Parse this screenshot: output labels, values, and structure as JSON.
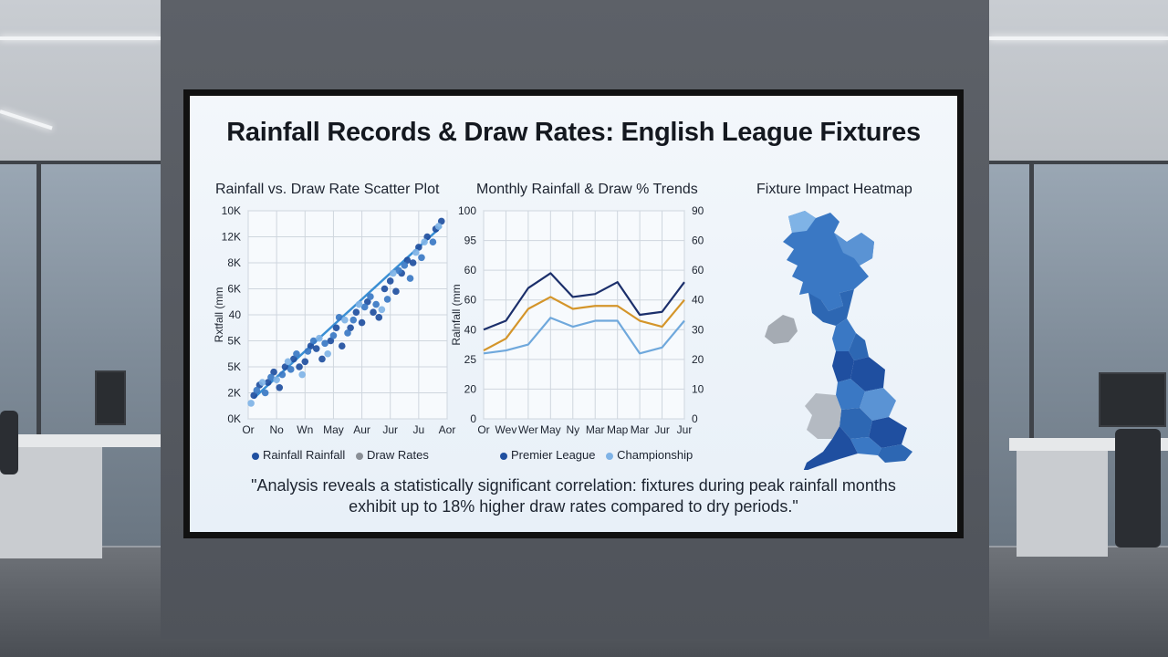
{
  "title": "Rainfall Records & Draw Rates: English League Fixtures",
  "caption_line1": "\"Analysis reveals a statistically significant correlation: fixtures during peak rainfall months",
  "caption_line2": "exhibit up to 18% higher draw rates compared to dry periods.\"",
  "colors": {
    "dark_blue": "#1f4fa0",
    "mid_blue": "#3a78c4",
    "light_blue": "#7fb3e6",
    "navy": "#1b2f6b",
    "gold": "#d4952a",
    "sky": "#6fa8dc",
    "ni_grey": "#a5abb3",
    "wales_grey": "#b4bac2"
  },
  "chart_data": [
    {
      "type": "scatter",
      "title": "Rainfall vs. Draw Rate Scatter Plot",
      "ylabel": "Rxtfall (mm",
      "y_ticks": [
        "0K",
        "2K",
        "5K",
        "5K",
        "40",
        "6K",
        "8K",
        "12K",
        "10K"
      ],
      "x_ticks": [
        "Or",
        "No",
        "Wn",
        "May",
        "Aur",
        "Jur",
        "Ju",
        "Aor"
      ],
      "legend": [
        "Rainfall Rainfall",
        "Draw Rates"
      ],
      "grid": true,
      "xlim": [
        0,
        7
      ],
      "ylim": [
        0,
        8
      ],
      "series": [
        {
          "name": "Rainfall Rainfall",
          "color": "dark",
          "values": [
            [
              0.2,
              0.9
            ],
            [
              0.4,
              1.3
            ],
            [
              0.7,
              1.4
            ],
            [
              0.9,
              1.8
            ],
            [
              1.1,
              1.2
            ],
            [
              1.3,
              2.0
            ],
            [
              1.6,
              2.3
            ],
            [
              1.8,
              2.0
            ],
            [
              2.0,
              2.2
            ],
            [
              2.2,
              2.8
            ],
            [
              2.4,
              2.7
            ],
            [
              2.6,
              2.3
            ],
            [
              2.9,
              3.0
            ],
            [
              3.1,
              3.5
            ],
            [
              3.3,
              2.8
            ],
            [
              3.6,
              3.5
            ],
            [
              3.8,
              4.1
            ],
            [
              4.0,
              3.7
            ],
            [
              4.2,
              4.5
            ],
            [
              4.4,
              4.1
            ],
            [
              4.6,
              3.9
            ],
            [
              4.8,
              5.0
            ],
            [
              5.0,
              5.3
            ],
            [
              5.2,
              4.9
            ],
            [
              5.4,
              5.6
            ],
            [
              5.6,
              6.1
            ],
            [
              5.8,
              6.0
            ],
            [
              6.0,
              6.6
            ],
            [
              6.3,
              7.0
            ],
            [
              6.6,
              7.3
            ],
            [
              6.8,
              7.6
            ]
          ]
        },
        {
          "name": "Draw Rates",
          "color": "mid",
          "values": [
            [
              0.3,
              1.1
            ],
            [
              0.6,
              1.0
            ],
            [
              0.8,
              1.6
            ],
            [
              1.2,
              1.7
            ],
            [
              1.5,
              1.9
            ],
            [
              1.7,
              2.5
            ],
            [
              2.1,
              2.6
            ],
            [
              2.3,
              3.0
            ],
            [
              2.7,
              2.9
            ],
            [
              3.0,
              3.2
            ],
            [
              3.2,
              3.9
            ],
            [
              3.5,
              3.3
            ],
            [
              3.7,
              3.8
            ],
            [
              4.1,
              4.3
            ],
            [
              4.3,
              4.7
            ],
            [
              4.5,
              4.4
            ],
            [
              4.9,
              4.6
            ],
            [
              5.3,
              5.7
            ],
            [
              5.5,
              5.9
            ],
            [
              5.7,
              5.4
            ],
            [
              6.1,
              6.2
            ],
            [
              6.5,
              6.8
            ]
          ]
        },
        {
          "name": "",
          "color": "light",
          "values": [
            [
              0.1,
              0.6
            ],
            [
              0.5,
              1.4
            ],
            [
              1.0,
              1.5
            ],
            [
              1.4,
              2.2
            ],
            [
              1.9,
              1.7
            ],
            [
              2.5,
              3.1
            ],
            [
              2.8,
              2.5
            ],
            [
              3.4,
              3.8
            ],
            [
              3.9,
              4.4
            ],
            [
              4.7,
              4.2
            ],
            [
              5.1,
              5.6
            ],
            [
              5.9,
              6.4
            ],
            [
              6.2,
              6.8
            ],
            [
              6.7,
              7.4
            ]
          ]
        }
      ],
      "trend": [
        [
          0.2,
          0.8
        ],
        [
          6.8,
          7.4
        ]
      ]
    },
    {
      "type": "line",
      "title": "Monthly Rainfall & Draw % Trends",
      "ylabel": "Ralnfall (mm",
      "y_ticks_left": [
        "0",
        "20",
        "25",
        "40",
        "60",
        "60",
        "95",
        "100"
      ],
      "y_ticks_right": [
        "0",
        "10",
        "20",
        "30",
        "40",
        "60",
        "60",
        "90"
      ],
      "x_ticks": [
        "Or",
        "Wev",
        "Wer",
        "May",
        "Ny",
        "Mar",
        "Map",
        "Mar",
        "Jur",
        "Jur"
      ],
      "legend": [
        "Premier League",
        "Championship"
      ],
      "grid": true,
      "series": [
        {
          "name": "Premier League",
          "color": "navy",
          "values": [
            3.0,
            3.3,
            4.4,
            4.9,
            4.1,
            4.2,
            4.6,
            3.5,
            3.6,
            4.6
          ]
        },
        {
          "name": "",
          "color": "gold",
          "values": [
            2.3,
            2.7,
            3.7,
            4.1,
            3.7,
            3.8,
            3.8,
            3.3,
            3.1,
            4.0
          ]
        },
        {
          "name": "Championship",
          "color": "sky",
          "values": [
            2.2,
            2.3,
            2.5,
            3.4,
            3.1,
            3.3,
            3.3,
            2.2,
            2.4,
            3.3
          ]
        }
      ]
    },
    {
      "type": "heatmap",
      "title": "Fixture Impact Heatmap"
    }
  ]
}
